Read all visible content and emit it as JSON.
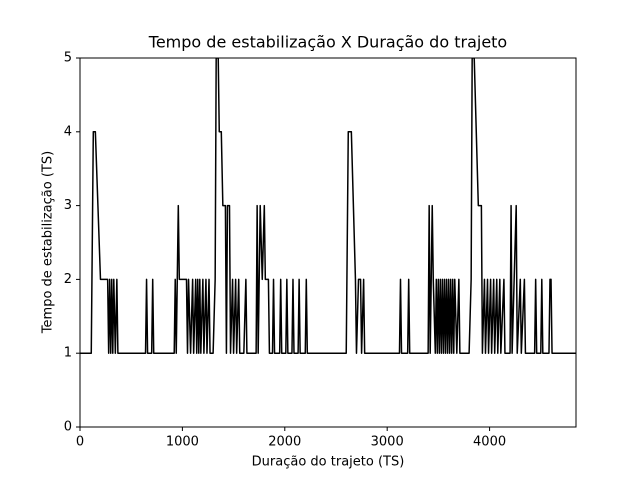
{
  "chart_data": {
    "type": "line",
    "title": "Tempo de estabilização X Duração do trajeto",
    "x_label": "Duração do trajeto (TS)",
    "y_label": "Tempo de estabilização (TS)",
    "color": "#000000",
    "xlim": [
      0,
      4844
    ],
    "ylim": [
      0,
      5
    ],
    "xticks": [
      0,
      1000,
      2000,
      3000,
      4000
    ],
    "yticks": [
      0,
      1,
      2,
      3,
      4,
      5
    ],
    "x": [
      0,
      110,
      130,
      150,
      175,
      200,
      270,
      280,
      290,
      300,
      310,
      320,
      330,
      345,
      360,
      370,
      640,
      650,
      660,
      700,
      710,
      720,
      920,
      930,
      940,
      950,
      960,
      970,
      1040,
      1050,
      1060,
      1080,
      1100,
      1110,
      1130,
      1140,
      1150,
      1160,
      1170,
      1180,
      1200,
      1210,
      1230,
      1240,
      1260,
      1270,
      1300,
      1320,
      1330,
      1350,
      1360,
      1380,
      1395,
      1420,
      1430,
      1440,
      1460,
      1470,
      1490,
      1500,
      1520,
      1530,
      1550,
      1560,
      1600,
      1620,
      1630,
      1720,
      1730,
      1740,
      1760,
      1780,
      1800,
      1810,
      1840,
      1850,
      1880,
      1890,
      1900,
      1950,
      1960,
      1970,
      2010,
      2020,
      2030,
      2070,
      2080,
      2090,
      2130,
      2140,
      2150,
      2200,
      2210,
      2220,
      2600,
      2620,
      2650,
      2690,
      2700,
      2720,
      2740,
      2750,
      2770,
      2780,
      3120,
      3130,
      3140,
      3200,
      3210,
      3220,
      3400,
      3410,
      3420,
      3440,
      3450,
      3470,
      3480,
      3490,
      3500,
      3510,
      3520,
      3530,
      3540,
      3550,
      3560,
      3570,
      3580,
      3590,
      3600,
      3610,
      3620,
      3630,
      3640,
      3650,
      3660,
      3680,
      3700,
      3710,
      3800,
      3820,
      3830,
      3850,
      3870,
      3890,
      3920,
      3930,
      3950,
      3960,
      3980,
      3990,
      4010,
      4020,
      4040,
      4050,
      4070,
      4080,
      4100,
      4110,
      4140,
      4150,
      4200,
      4210,
      4220,
      4260,
      4270,
      4300,
      4310,
      4340,
      4350,
      4440,
      4450,
      4460,
      4500,
      4510,
      4520,
      4580,
      4590,
      4600,
      4610,
      4844
    ],
    "values": [
      1,
      1,
      4,
      4,
      3,
      2,
      2,
      1,
      2,
      1,
      2,
      1,
      2,
      1,
      2,
      1,
      1,
      2,
      1,
      1,
      2,
      1,
      1,
      2,
      1,
      2,
      3,
      2,
      2,
      1,
      2,
      1,
      2,
      1,
      2,
      1,
      2,
      1,
      2,
      1,
      2,
      1,
      2,
      1,
      2,
      1,
      1,
      2,
      5,
      5,
      4,
      4,
      3,
      3,
      1,
      3,
      3,
      1,
      2,
      1,
      2,
      1,
      2,
      1,
      1,
      2,
      1,
      1,
      3,
      1,
      3,
      2,
      3,
      2,
      2,
      1,
      1,
      2,
      1,
      1,
      2,
      1,
      1,
      2,
      1,
      1,
      2,
      1,
      1,
      2,
      1,
      1,
      2,
      1,
      1,
      4,
      4,
      2,
      1,
      2,
      2,
      1,
      2,
      1,
      1,
      2,
      1,
      1,
      2,
      1,
      1,
      3,
      1,
      3,
      2,
      1,
      2,
      1,
      2,
      1,
      2,
      1,
      2,
      1,
      2,
      1,
      2,
      1,
      2,
      1,
      2,
      1,
      2,
      1,
      2,
      1,
      2,
      1,
      1,
      2,
      5,
      5,
      4,
      3,
      3,
      1,
      2,
      1,
      2,
      1,
      2,
      1,
      2,
      1,
      2,
      1,
      2,
      1,
      2,
      1,
      1,
      3,
      1,
      3,
      1,
      2,
      1,
      2,
      1,
      1,
      2,
      1,
      1,
      2,
      1,
      1,
      2,
      2,
      1,
      1
    ]
  }
}
